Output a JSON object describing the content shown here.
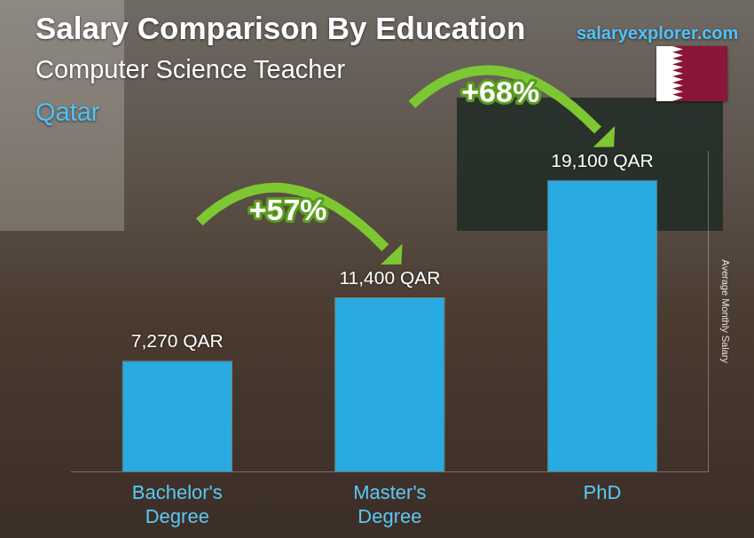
{
  "chart_data": {
    "type": "bar",
    "title": "Salary Comparison By Education",
    "subtitle": "Computer Science Teacher",
    "location": "Qatar",
    "source": "salaryexplorer.com",
    "y_label": "Average Monthly Salary",
    "categories": [
      "Bachelor's Degree",
      "Master's Degree",
      "PhD"
    ],
    "values": [
      7270,
      11400,
      19100
    ],
    "value_labels": [
      "7,270 QAR",
      "11,400 QAR",
      "19,100 QAR"
    ],
    "data_labels": true,
    "annotations": [
      "+57%",
      "+68%"
    ],
    "color": "#29abe2",
    "ylim": [
      0,
      21000
    ],
    "grid": false,
    "tick_labels": "x"
  }
}
